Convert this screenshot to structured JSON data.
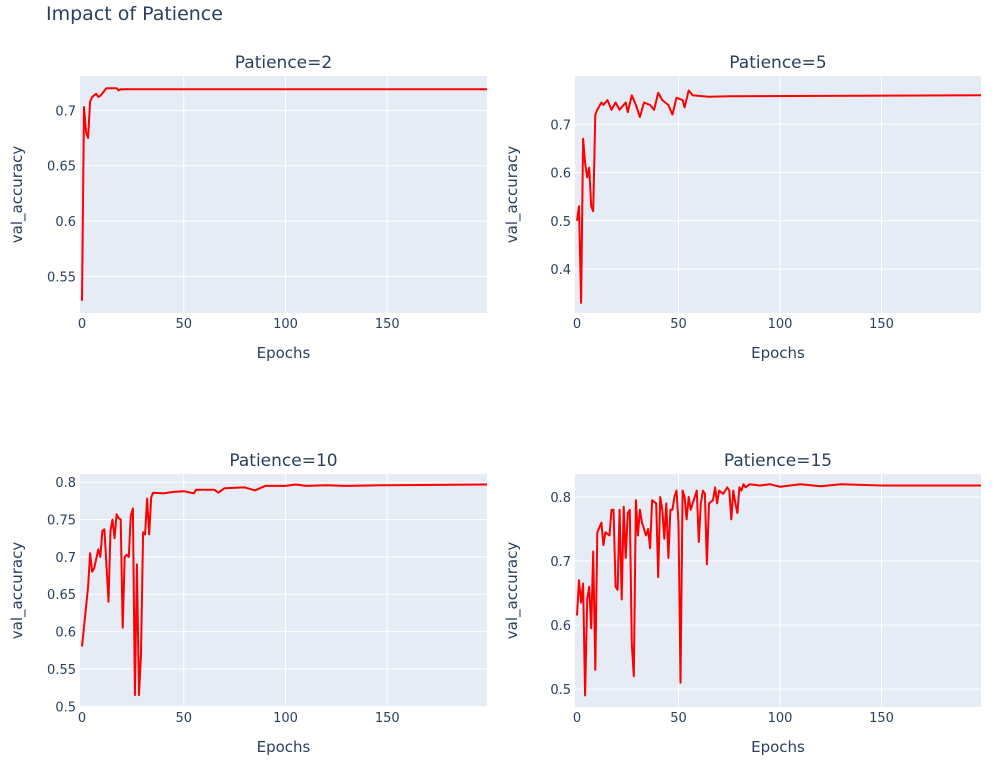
{
  "title": "Impact of Patience",
  "colors": {
    "line": "#ff0000",
    "plot_bg": "#e5ecf6",
    "grid": "#ffffff",
    "text": "#2a3f5f"
  },
  "chart_data": [
    {
      "type": "line",
      "title": "Patience=2",
      "xlabel": "Epochs",
      "ylabel": "val_accuracy",
      "xlim": [
        0,
        199
      ],
      "ylim": [
        0.517,
        0.731
      ],
      "xticks": [
        0,
        50,
        100,
        150
      ],
      "yticks": [
        0.55,
        0.6,
        0.65,
        0.7
      ],
      "ytick_labels": [
        "0.55",
        "0.6",
        "0.65",
        "0.7"
      ],
      "grid": true,
      "x": [
        0,
        1,
        2,
        3,
        4,
        5,
        7,
        8,
        9,
        12,
        17,
        18,
        19,
        199
      ],
      "y": [
        0.528,
        0.703,
        0.68,
        0.675,
        0.708,
        0.712,
        0.715,
        0.712,
        0.713,
        0.72,
        0.72,
        0.718,
        0.719,
        0.719
      ]
    },
    {
      "type": "line",
      "title": "Patience=5",
      "xlabel": "Epochs",
      "ylabel": "val_accuracy",
      "xlim": [
        0,
        199
      ],
      "ylim": [
        0.309,
        0.8
      ],
      "xticks": [
        0,
        50,
        100,
        150
      ],
      "yticks": [
        0.4,
        0.5,
        0.6,
        0.7
      ],
      "ytick_labels": [
        "0.4",
        "0.5",
        "0.6",
        "0.7"
      ],
      "grid": true,
      "x": [
        0,
        1,
        2,
        3,
        4,
        5,
        6,
        7,
        8,
        9,
        10,
        12,
        13,
        15,
        17,
        19,
        21,
        24,
        25,
        27,
        29,
        31,
        33,
        36,
        38,
        40,
        42,
        45,
        47,
        49,
        52,
        53,
        55,
        57,
        62,
        65,
        75,
        199
      ],
      "y": [
        0.5,
        0.53,
        0.33,
        0.67,
        0.62,
        0.59,
        0.61,
        0.53,
        0.52,
        0.72,
        0.73,
        0.745,
        0.74,
        0.75,
        0.73,
        0.745,
        0.73,
        0.745,
        0.725,
        0.76,
        0.74,
        0.715,
        0.745,
        0.74,
        0.73,
        0.765,
        0.75,
        0.74,
        0.72,
        0.755,
        0.75,
        0.735,
        0.77,
        0.76,
        0.758,
        0.757,
        0.758,
        0.76
      ]
    },
    {
      "type": "line",
      "title": "Patience=10",
      "xlabel": "Epochs",
      "ylabel": "val_accuracy",
      "xlim": [
        0,
        199
      ],
      "ylim": [
        0.499,
        0.811
      ],
      "xticks": [
        0,
        50,
        100,
        150
      ],
      "yticks": [
        0.5,
        0.55,
        0.6,
        0.65,
        0.7,
        0.75,
        0.8
      ],
      "ytick_labels": [
        "0.5",
        "0.55",
        "0.6",
        "0.65",
        "0.7",
        "0.75",
        "0.8"
      ],
      "grid": true,
      "x": [
        0,
        3,
        4,
        5,
        6,
        8,
        9,
        10,
        11,
        13,
        14,
        15,
        16,
        17,
        18,
        19,
        20,
        21,
        22,
        23,
        24,
        25,
        26,
        27,
        28,
        29,
        30,
        31,
        32,
        33,
        34,
        35,
        40,
        45,
        50,
        55,
        56,
        60,
        65,
        67,
        70,
        80,
        85,
        90,
        100,
        105,
        110,
        120,
        130,
        150,
        199
      ],
      "y": [
        0.58,
        0.66,
        0.705,
        0.68,
        0.685,
        0.71,
        0.7,
        0.735,
        0.737,
        0.64,
        0.735,
        0.75,
        0.725,
        0.757,
        0.752,
        0.75,
        0.605,
        0.7,
        0.703,
        0.7,
        0.755,
        0.765,
        0.515,
        0.69,
        0.515,
        0.57,
        0.733,
        0.73,
        0.778,
        0.73,
        0.78,
        0.786,
        0.785,
        0.787,
        0.788,
        0.785,
        0.79,
        0.79,
        0.79,
        0.786,
        0.792,
        0.793,
        0.789,
        0.795,
        0.795,
        0.797,
        0.795,
        0.796,
        0.795,
        0.796,
        0.797
      ]
    },
    {
      "type": "line",
      "title": "Patience=15",
      "xlabel": "Epochs",
      "ylabel": "val_accuracy",
      "xlim": [
        0,
        199
      ],
      "ylim": [
        0.472,
        0.836
      ],
      "xticks": [
        0,
        50,
        100,
        150
      ],
      "yticks": [
        0.5,
        0.6,
        0.7,
        0.8
      ],
      "ytick_labels": [
        "0.5",
        "0.6",
        "0.7",
        "0.8"
      ],
      "grid": true,
      "x": [
        0,
        1,
        2,
        3,
        4,
        5,
        6,
        7,
        8,
        9,
        10,
        12,
        13,
        14,
        16,
        17,
        18,
        19,
        20,
        21,
        22,
        23,
        24,
        25,
        26,
        27,
        28,
        29,
        30,
        31,
        32,
        34,
        35,
        36,
        37,
        39,
        40,
        41,
        42,
        43,
        44,
        45,
        46,
        47,
        48,
        49,
        50,
        51,
        52,
        53,
        54,
        55,
        56,
        58,
        59,
        60,
        61,
        62,
        63,
        64,
        65,
        67,
        68,
        69,
        70,
        72,
        74,
        75,
        76,
        77,
        78,
        79,
        80,
        81,
        82,
        83,
        85,
        90,
        95,
        100,
        110,
        120,
        130,
        150,
        199
      ],
      "y": [
        0.615,
        0.67,
        0.635,
        0.665,
        0.49,
        0.64,
        0.66,
        0.595,
        0.715,
        0.53,
        0.745,
        0.76,
        0.725,
        0.745,
        0.74,
        0.78,
        0.78,
        0.66,
        0.655,
        0.78,
        0.64,
        0.785,
        0.705,
        0.775,
        0.78,
        0.57,
        0.52,
        0.795,
        0.74,
        0.78,
        0.76,
        0.74,
        0.75,
        0.72,
        0.795,
        0.79,
        0.675,
        0.8,
        0.78,
        0.735,
        0.79,
        0.705,
        0.78,
        0.78,
        0.8,
        0.81,
        0.76,
        0.51,
        0.81,
        0.8,
        0.765,
        0.8,
        0.78,
        0.8,
        0.81,
        0.73,
        0.79,
        0.81,
        0.805,
        0.695,
        0.79,
        0.795,
        0.815,
        0.79,
        0.81,
        0.805,
        0.815,
        0.81,
        0.765,
        0.81,
        0.79,
        0.775,
        0.815,
        0.81,
        0.82,
        0.815,
        0.82,
        0.818,
        0.82,
        0.816,
        0.82,
        0.817,
        0.82,
        0.818,
        0.818
      ]
    }
  ]
}
